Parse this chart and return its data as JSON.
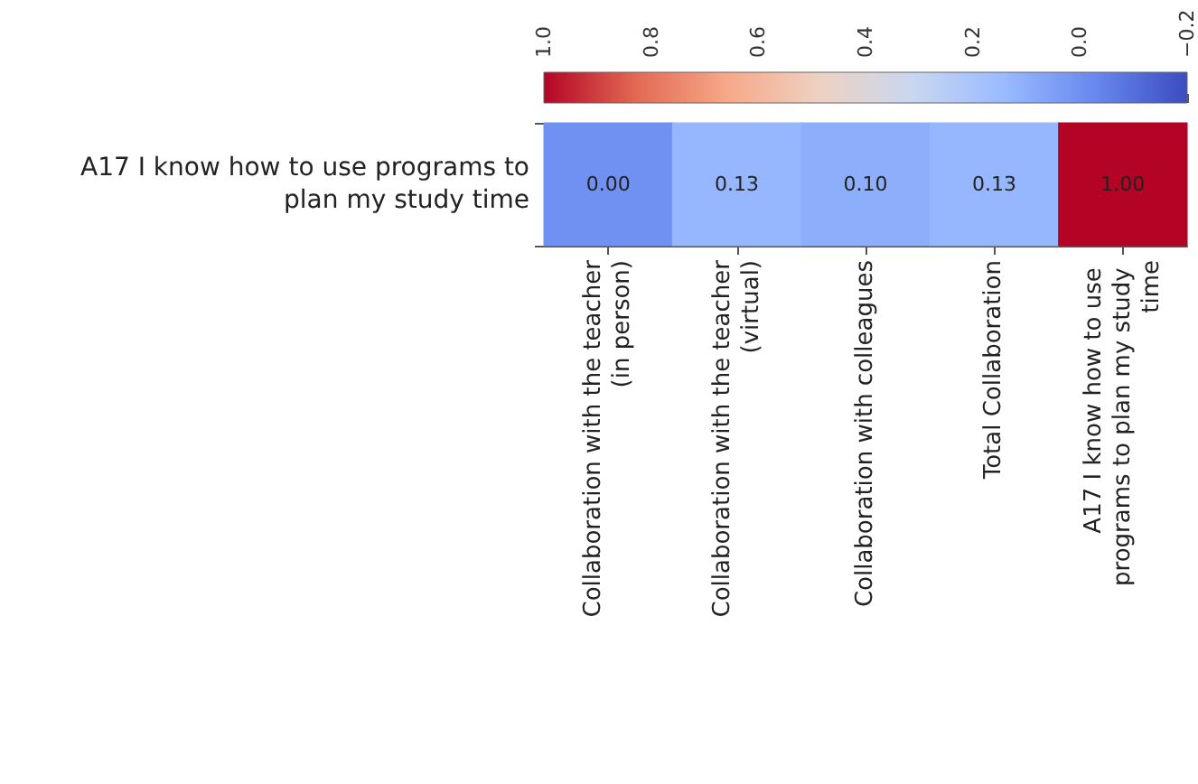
{
  "chart_data": {
    "type": "heatmap",
    "categories": [
      "Collaboration with the teacher (in person)",
      "Collaboration with the teacher (virtual)",
      "Collaboration with colleagues",
      "Total Collaboration",
      "A17 I know how to use programs to plan my study time"
    ],
    "y_categories": [
      "A17 I know how to use programs to plan my study time"
    ],
    "cells": [
      [
        0.0,
        0.13,
        0.1,
        0.13,
        1.0
      ]
    ],
    "cell_labels": [
      [
        "0.00",
        "0.13",
        "0.10",
        "0.13",
        "1.00"
      ]
    ],
    "clim": [
      -0.2,
      1.0
    ],
    "cticks": [
      {
        "value": 1.0,
        "label": "1.0"
      },
      {
        "value": 0.8,
        "label": "0.8"
      },
      {
        "value": 0.6,
        "label": "0.6"
      },
      {
        "value": 0.4,
        "label": "0.4"
      },
      {
        "value": 0.2,
        "label": "0.2"
      },
      {
        "value": 0.0,
        "label": "0.0"
      },
      {
        "value": -0.2,
        "label": "−0.2"
      }
    ],
    "data_labels": true
  }
}
